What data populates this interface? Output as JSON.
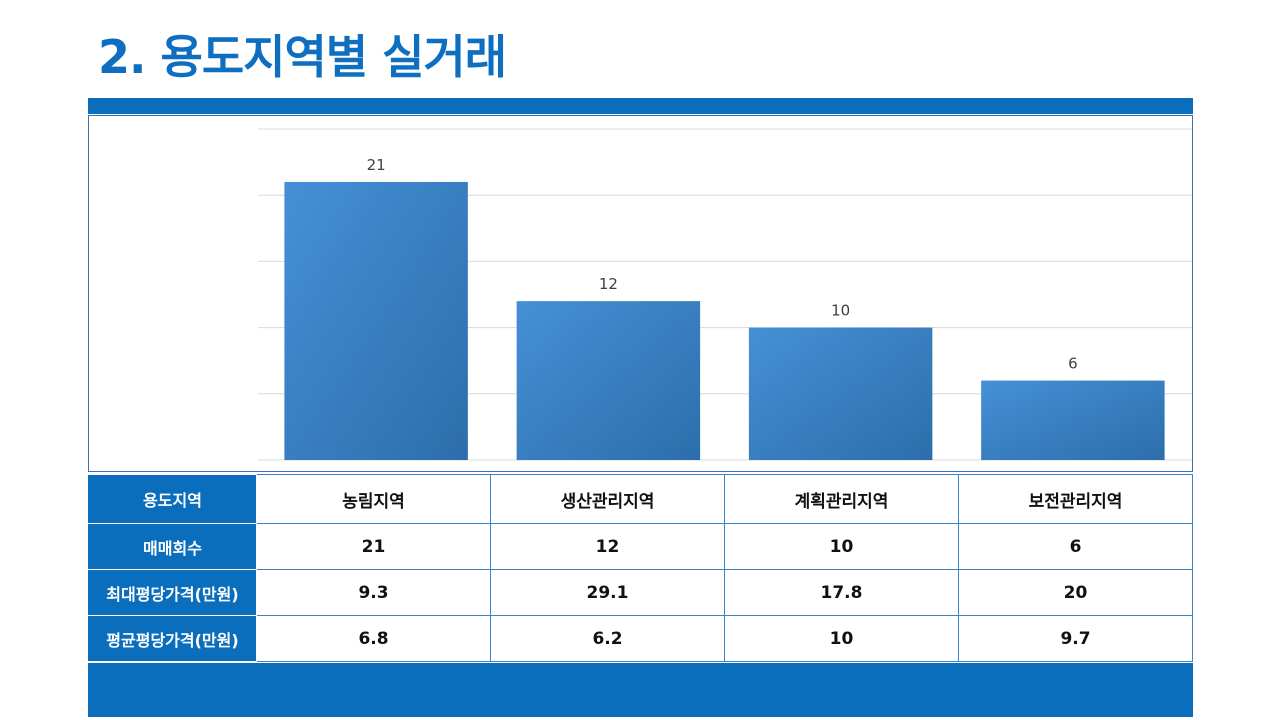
{
  "title": "2. 용도지역별 실거래",
  "colors": {
    "accent": "#0a6ebd",
    "bar_light": "#4590d6",
    "bar_dark": "#2c6eab"
  },
  "chart_data": {
    "type": "bar",
    "categories": [
      "농림지역",
      "생산관리지역",
      "계획관리지역",
      "보전관리지역"
    ],
    "values": [
      21,
      12,
      10,
      6
    ],
    "ylim": [
      0,
      25
    ],
    "grid": true,
    "data_labels": true,
    "title": "",
    "xlabel": "",
    "ylabel": ""
  },
  "table": {
    "rows": [
      {
        "label": "용도지역",
        "cells": [
          "농림지역",
          "생산관리지역",
          "계획관리지역",
          "보전관리지역"
        ]
      },
      {
        "label": "매매회수",
        "cells": [
          "21",
          "12",
          "10",
          "6"
        ]
      },
      {
        "label": "최대평당가격(만원)",
        "cells": [
          "9.3",
          "29.1",
          "17.8",
          "20"
        ]
      },
      {
        "label": "평균평당가격(만원)",
        "cells": [
          "6.8",
          "6.2",
          "10",
          "9.7"
        ]
      }
    ]
  }
}
